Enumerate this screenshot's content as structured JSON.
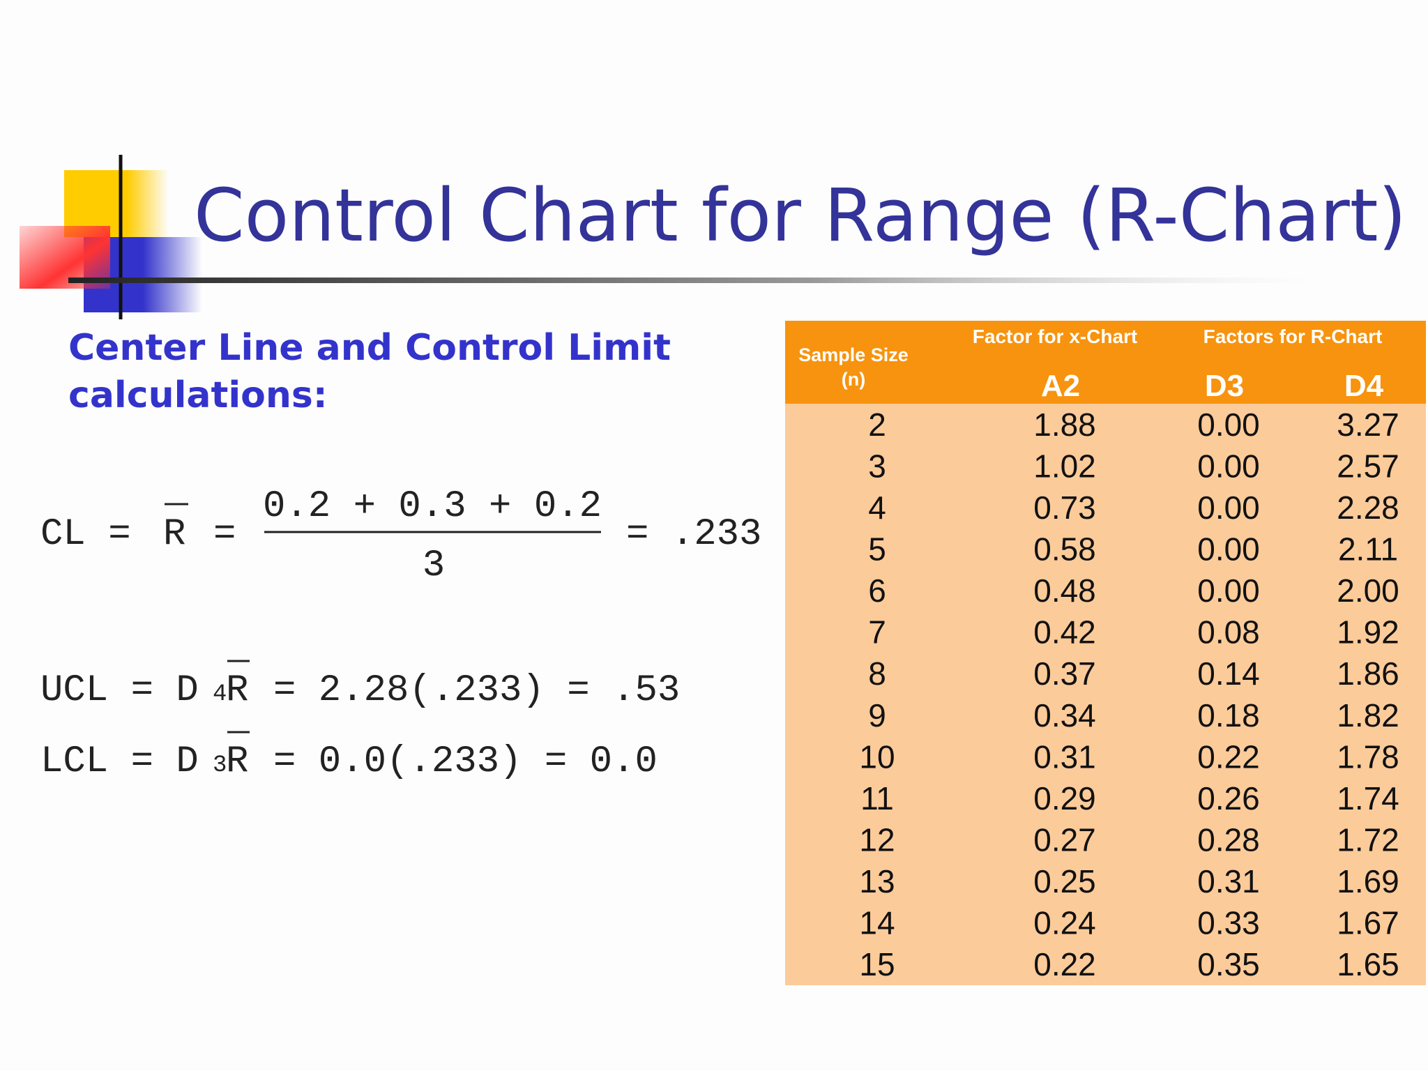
{
  "header": {
    "title": "Control Chart for Range (R-Chart)"
  },
  "subtitle": [
    "Center Line and Control Limit",
    "calculations:"
  ],
  "formulas": {
    "cl": {
      "lhs": "CL =",
      "r": "R",
      "eq": "=",
      "numerator": "0.2 + 0.3 + 0.2",
      "denominator": "3",
      "result": "= .233"
    },
    "ucl": {
      "lhs": "UCL = D",
      "sub": "4",
      "r": "R",
      "rhs": "= 2.28(.233) = .53"
    },
    "lcl": {
      "lhs": "LCL = D",
      "sub": "3",
      "r": "R",
      "rhs": "= 0.0(.233) = 0.0"
    }
  },
  "table": {
    "group_headers": [
      "Factor for x-Chart",
      "Factors for R-Chart"
    ],
    "sample_size_header": [
      "Sample Size",
      "(n)"
    ],
    "columns": [
      "A2",
      "D3",
      "D4"
    ],
    "rows": [
      [
        "2",
        "1.88",
        "0.00",
        "3.27"
      ],
      [
        "3",
        "1.02",
        "0.00",
        "2.57"
      ],
      [
        "4",
        "0.73",
        "0.00",
        "2.28"
      ],
      [
        "5",
        "0.58",
        "0.00",
        "2.11"
      ],
      [
        "6",
        "0.48",
        "0.00",
        "2.00"
      ],
      [
        "7",
        "0.42",
        "0.08",
        "1.92"
      ],
      [
        "8",
        "0.37",
        "0.14",
        "1.86"
      ],
      [
        "9",
        "0.34",
        "0.18",
        "1.82"
      ],
      [
        "10",
        "0.31",
        "0.22",
        "1.78"
      ],
      [
        "11",
        "0.29",
        "0.26",
        "1.74"
      ],
      [
        "12",
        "0.27",
        "0.28",
        "1.72"
      ],
      [
        "13",
        "0.25",
        "0.31",
        "1.69"
      ],
      [
        "14",
        "0.24",
        "0.33",
        "1.67"
      ],
      [
        "15",
        "0.22",
        "0.35",
        "1.65"
      ]
    ]
  }
}
